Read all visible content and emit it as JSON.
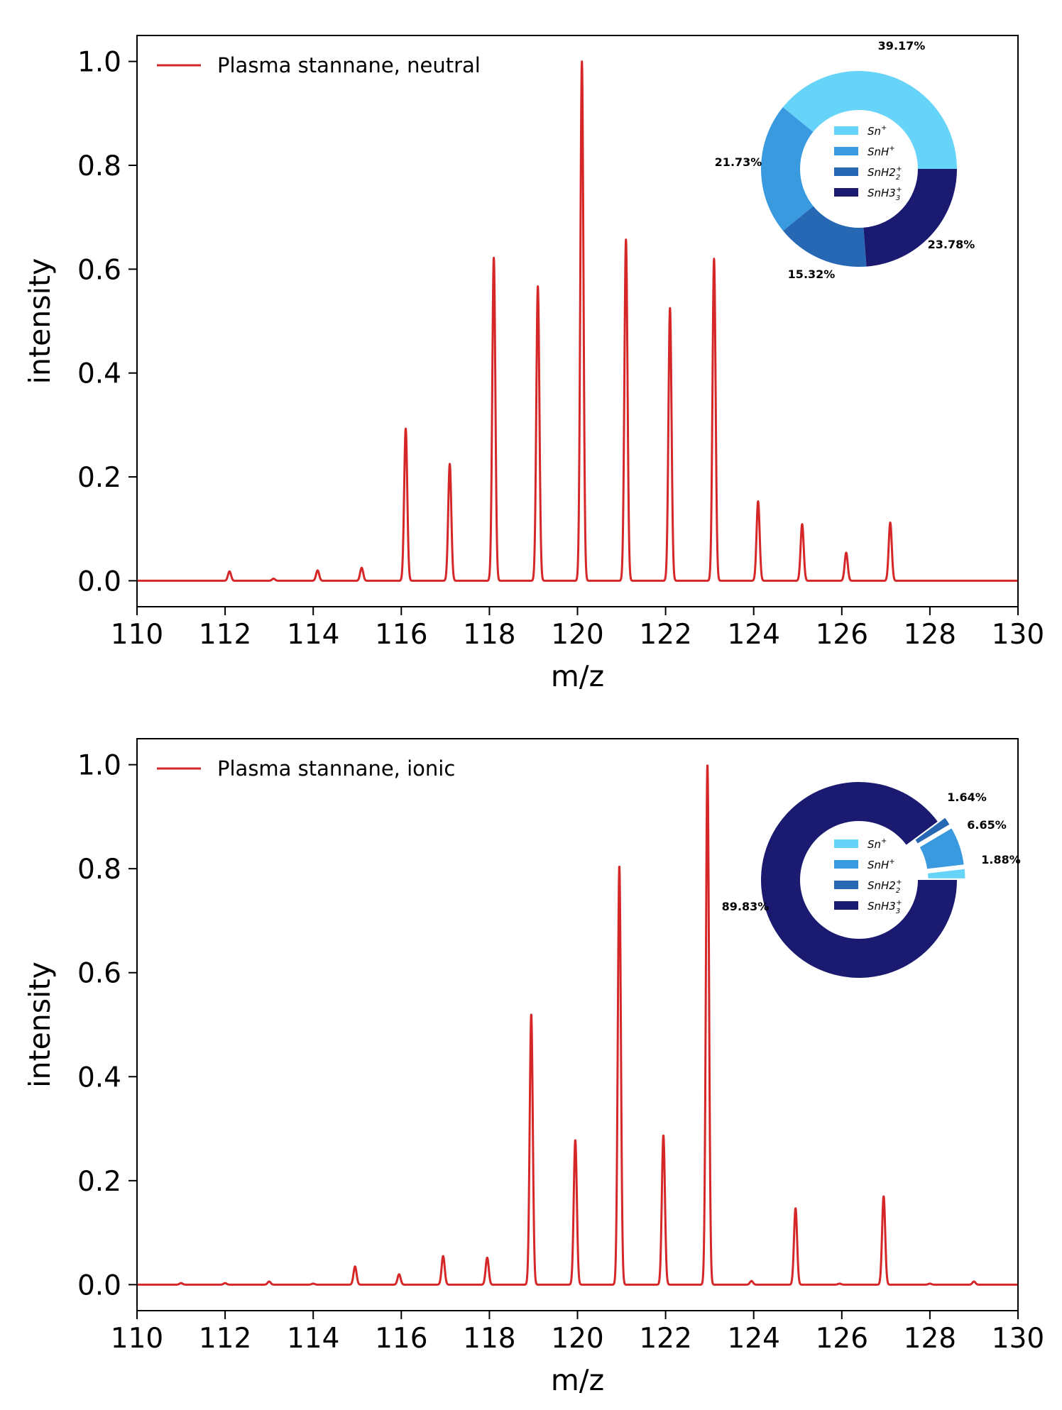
{
  "colors": {
    "spectrum_line": "#d62728",
    "Sn+": "#66d3f9",
    "SnH+": "#3a9ae0",
    "SnH2+": "#2668b4",
    "SnH3+": "#1a1a70"
  },
  "chart_data": [
    {
      "type": "line",
      "xlabel": "m/z",
      "ylabel": "intensity",
      "xlim": [
        110,
        130
      ],
      "ylim": [
        -0.05,
        1.05
      ],
      "x_ticks": [
        "110",
        "112",
        "114",
        "116",
        "118",
        "120",
        "122",
        "124",
        "126",
        "128",
        "130"
      ],
      "y_ticks": [
        "0.0",
        "0.2",
        "0.4",
        "0.6",
        "0.8",
        "1.0"
      ],
      "grid": false,
      "legend_position": "top-left",
      "series": [
        {
          "name": "Plasma stannane, neutral",
          "peaks": [
            {
              "mz": 112.1,
              "intensity": 0.018
            },
            {
              "mz": 113.1,
              "intensity": 0.004
            },
            {
              "mz": 114.1,
              "intensity": 0.02
            },
            {
              "mz": 115.1,
              "intensity": 0.025
            },
            {
              "mz": 116.1,
              "intensity": 0.293
            },
            {
              "mz": 117.1,
              "intensity": 0.225
            },
            {
              "mz": 118.1,
              "intensity": 0.622
            },
            {
              "mz": 119.1,
              "intensity": 0.567
            },
            {
              "mz": 120.1,
              "intensity": 1.0
            },
            {
              "mz": 121.1,
              "intensity": 0.657
            },
            {
              "mz": 122.1,
              "intensity": 0.525
            },
            {
              "mz": 123.1,
              "intensity": 0.62
            },
            {
              "mz": 124.1,
              "intensity": 0.153
            },
            {
              "mz": 125.1,
              "intensity": 0.109
            },
            {
              "mz": 126.1,
              "intensity": 0.054
            },
            {
              "mz": 127.1,
              "intensity": 0.112
            }
          ]
        }
      ],
      "inset_pie": {
        "type": "pie",
        "donut": true,
        "legend": [
          "Sn",
          "SnH",
          "SnH2",
          "SnH3"
        ],
        "slices": [
          {
            "species": "Sn+",
            "value": 39.17,
            "label": "39.17%",
            "explode": false
          },
          {
            "species": "SnH+",
            "value": 21.73,
            "label": "21.73%",
            "explode": false
          },
          {
            "species": "SnH2+",
            "value": 15.32,
            "label": "15.32%",
            "explode": false
          },
          {
            "species": "SnH3+",
            "value": 23.78,
            "label": "23.78%",
            "explode": false
          }
        ]
      }
    },
    {
      "type": "line",
      "xlabel": "m/z",
      "ylabel": "intensity",
      "xlim": [
        110,
        130
      ],
      "ylim": [
        -0.05,
        1.05
      ],
      "x_ticks": [
        "110",
        "112",
        "114",
        "116",
        "118",
        "120",
        "122",
        "124",
        "126",
        "128",
        "130"
      ],
      "y_ticks": [
        "0.0",
        "0.2",
        "0.4",
        "0.6",
        "0.8",
        "1.0"
      ],
      "grid": false,
      "legend_position": "top-left",
      "series": [
        {
          "name": "Plasma stannane, ionic",
          "peaks": [
            {
              "mz": 111.0,
              "intensity": 0.003
            },
            {
              "mz": 112.0,
              "intensity": 0.003
            },
            {
              "mz": 113.0,
              "intensity": 0.006
            },
            {
              "mz": 114.0,
              "intensity": 0.002
            },
            {
              "mz": 114.95,
              "intensity": 0.035
            },
            {
              "mz": 115.95,
              "intensity": 0.02
            },
            {
              "mz": 116.95,
              "intensity": 0.055
            },
            {
              "mz": 117.95,
              "intensity": 0.052
            },
            {
              "mz": 118.95,
              "intensity": 0.52
            },
            {
              "mz": 119.95,
              "intensity": 0.278
            },
            {
              "mz": 120.95,
              "intensity": 0.805
            },
            {
              "mz": 121.95,
              "intensity": 0.287
            },
            {
              "mz": 122.95,
              "intensity": 1.0
            },
            {
              "mz": 123.95,
              "intensity": 0.007
            },
            {
              "mz": 124.95,
              "intensity": 0.147
            },
            {
              "mz": 125.95,
              "intensity": 0.002
            },
            {
              "mz": 126.95,
              "intensity": 0.17
            },
            {
              "mz": 128.0,
              "intensity": 0.002
            },
            {
              "mz": 129.0,
              "intensity": 0.006
            }
          ]
        }
      ],
      "inset_pie": {
        "type": "pie",
        "donut": true,
        "legend": [
          "Sn",
          "SnH",
          "SnH2",
          "SnH3"
        ],
        "slices": [
          {
            "species": "Sn+",
            "value": 1.88,
            "label": "1.88%",
            "explode": true
          },
          {
            "species": "SnH+",
            "value": 6.65,
            "label": "6.65%",
            "explode": true
          },
          {
            "species": "SnH2+",
            "value": 1.64,
            "label": "1.64%",
            "explode": true
          },
          {
            "species": "SnH3+",
            "value": 89.83,
            "label": "89.83%",
            "explode": false
          }
        ]
      }
    }
  ]
}
